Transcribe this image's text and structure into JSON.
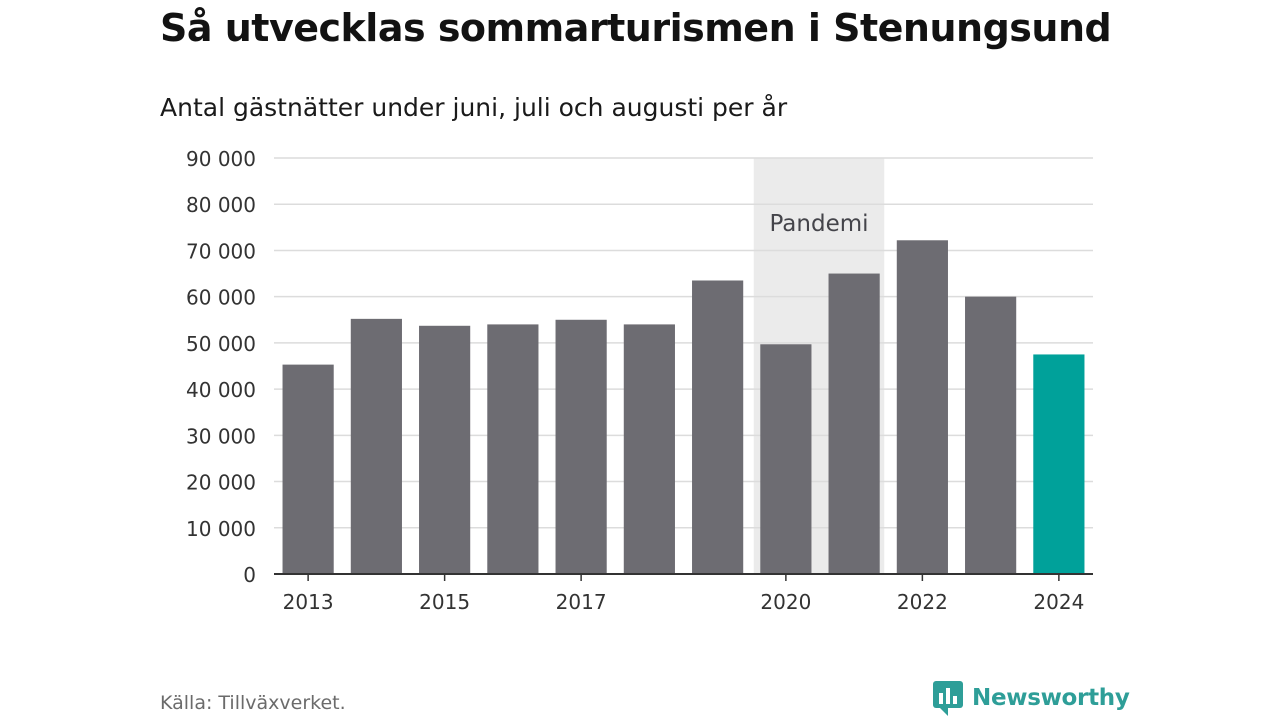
{
  "header": {
    "title": "Så utvecklas sommarturismen i Stenungsund",
    "subtitle": "Antal gästnätter under juni, juli och augusti per år"
  },
  "footer": {
    "source": "Källa: Tillväxverket.",
    "brand": "Newsworthy",
    "brand_icon": "newsworthy-logo-icon"
  },
  "chart_data": {
    "type": "bar",
    "title": "Så utvecklas sommarturismen i Stenungsund",
    "subtitle": "Antal gästnätter under juni, juli och augusti per år",
    "xlabel": "",
    "ylabel": "",
    "categories": [
      "2013",
      "2014",
      "2015",
      "2016",
      "2017",
      "2018",
      "2019",
      "2020",
      "2021",
      "2022",
      "2023",
      "2024"
    ],
    "values": [
      45300,
      55200,
      53700,
      54000,
      55000,
      54000,
      63500,
      49700,
      65000,
      72200,
      60000,
      47500
    ],
    "x_tick_labels": [
      "2013",
      "2015",
      "2017",
      "2020",
      "2022",
      "2024"
    ],
    "y_tick_labels": [
      "0",
      "10 000",
      "20 000",
      "30 000",
      "40 000",
      "50 000",
      "60 000",
      "70 000",
      "80 000",
      "90 000"
    ],
    "ylim": [
      0,
      90000
    ],
    "grid": true,
    "legend": "none",
    "highlight": {
      "category": "2024",
      "color": "#00a19a"
    },
    "bar_color": "#6d6c72",
    "annotation": {
      "label": "Pandemi",
      "from": "2020",
      "to": "2021",
      "color": "#ebebeb"
    }
  }
}
